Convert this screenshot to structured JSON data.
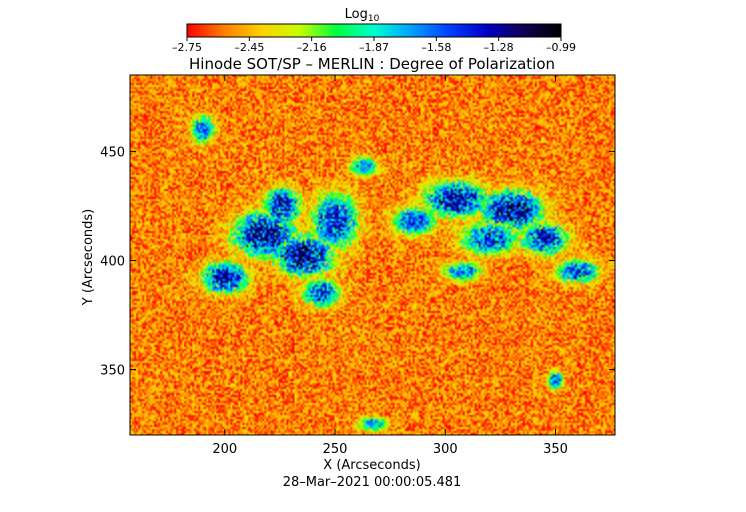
{
  "chart_data": {
    "type": "heatmap",
    "title": "Hinode SOT/SP – MERLIN : Degree of Polarization",
    "xlabel": "X (Arcseconds)",
    "ylabel": "Y (Arcseconds)",
    "timestamp": "28–Mar–2021 00:00:05.481",
    "xlim": [
      157,
      377
    ],
    "ylim": [
      320,
      485
    ],
    "x_ticks": [
      200,
      250,
      300,
      350
    ],
    "x_tick_labels": [
      "200",
      "250",
      "300",
      "350"
    ],
    "y_ticks": [
      350,
      400,
      450
    ],
    "y_tick_labels": [
      "350",
      "400",
      "450"
    ],
    "colorbar": {
      "label_base": "Log",
      "label_sub": "10",
      "range": [
        -2.75,
        -0.99
      ],
      "tick_labels": [
        "–2.75",
        "–2.45",
        "–2.16",
        "–1.87",
        "–1.58",
        "–1.28",
        "–0.99"
      ],
      "colors": [
        "#ff0000",
        "#ff8000",
        "#ffd000",
        "#c8ff00",
        "#00ff40",
        "#00ffd0",
        "#00a0ff",
        "#0040ff",
        "#0000c8",
        "#100050",
        "#000000"
      ]
    },
    "background_level": -2.55,
    "active_regions": [
      {
        "x": 218,
        "y": 412,
        "rx": 14,
        "ry": 10,
        "level": -1.15
      },
      {
        "x": 236,
        "y": 402,
        "rx": 13,
        "ry": 9,
        "level": -1.12
      },
      {
        "x": 200,
        "y": 392,
        "rx": 10,
        "ry": 7,
        "level": -1.2
      },
      {
        "x": 250,
        "y": 418,
        "rx": 10,
        "ry": 12,
        "level": -1.3
      },
      {
        "x": 226,
        "y": 425,
        "rx": 8,
        "ry": 8,
        "level": -1.25
      },
      {
        "x": 244,
        "y": 385,
        "rx": 8,
        "ry": 6,
        "level": -1.35
      },
      {
        "x": 305,
        "y": 428,
        "rx": 14,
        "ry": 8,
        "level": -1.2
      },
      {
        "x": 330,
        "y": 423,
        "rx": 14,
        "ry": 9,
        "level": -1.15
      },
      {
        "x": 345,
        "y": 410,
        "rx": 10,
        "ry": 7,
        "level": -1.25
      },
      {
        "x": 320,
        "y": 410,
        "rx": 12,
        "ry": 7,
        "level": -1.35
      },
      {
        "x": 360,
        "y": 395,
        "rx": 9,
        "ry": 5,
        "level": -1.35
      },
      {
        "x": 286,
        "y": 418,
        "rx": 9,
        "ry": 6,
        "level": -1.4
      },
      {
        "x": 190,
        "y": 460,
        "rx": 5,
        "ry": 6,
        "level": -1.45
      },
      {
        "x": 263,
        "y": 443,
        "rx": 6,
        "ry": 4,
        "level": -1.55
      },
      {
        "x": 308,
        "y": 395,
        "rx": 8,
        "ry": 4,
        "level": -1.5
      },
      {
        "x": 350,
        "y": 345,
        "rx": 3,
        "ry": 4,
        "level": -1.35
      },
      {
        "x": 267,
        "y": 325,
        "rx": 6,
        "ry": 3,
        "level": -1.6
      }
    ]
  }
}
